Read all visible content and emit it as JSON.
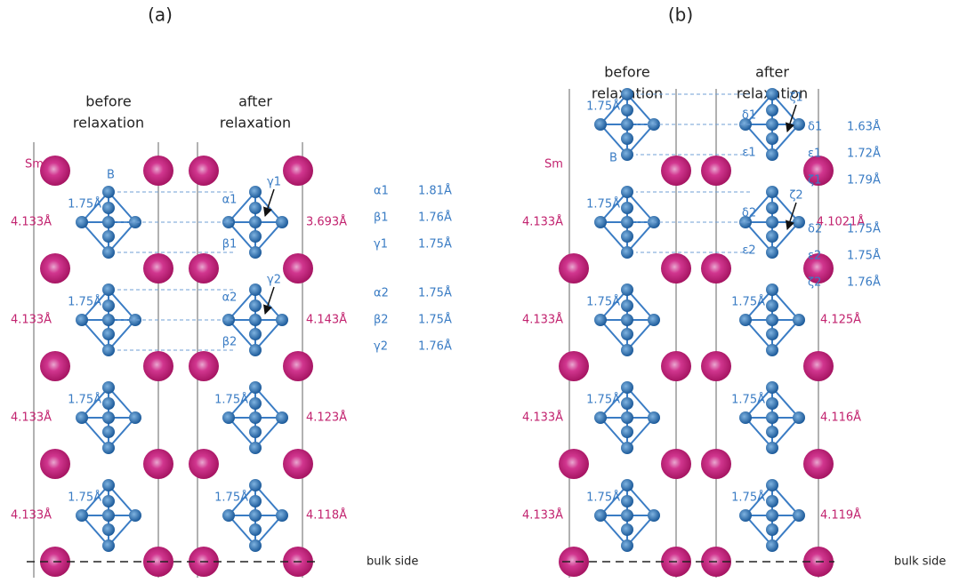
{
  "panels": [
    {
      "label": "(a)",
      "before": [
        "before",
        "relaxation"
      ],
      "after": [
        "after",
        "relaxation"
      ],
      "sm": "Sm",
      "b": "B",
      "bulk": "bulk side",
      "left_spacing": [
        "4.133Å",
        "4.133Å",
        "4.133Å",
        "4.133Å"
      ],
      "right_spacing": [
        "3.693Å",
        "4.143Å",
        "4.123Å",
        "4.118Å"
      ],
      "before_cluster_labels": [
        "1.75Å",
        "1.75Å",
        "1.75Å",
        "1.75Å"
      ],
      "after_cluster_labels": [
        "1.75Å",
        "1.75Å"
      ],
      "bonds": [
        [
          "α1",
          "1.81Å"
        ],
        [
          "β1",
          "1.76Å"
        ],
        [
          "γ1",
          "1.75Å"
        ],
        [
          "α2",
          "1.75Å"
        ],
        [
          "β2",
          "1.75Å"
        ],
        [
          "γ2",
          "1.76Å"
        ]
      ]
    },
    {
      "label": "(b)",
      "before": [
        "before",
        "relaxation"
      ],
      "after": [
        "after",
        "relaxation"
      ],
      "sm": "Sm",
      "b": "B",
      "bulk": "bulk side",
      "left_spacing": [
        "4.133Å",
        "4.133Å",
        "4.133Å",
        "4.133Å"
      ],
      "right_spacing": [
        "4.1021Å",
        "4.125Å",
        "4.116Å",
        "4.119Å"
      ],
      "before_cluster_labels": [
        "1.75Å",
        "1.75Å",
        "1.75Å",
        "1.75Å",
        "1.75Å"
      ],
      "after_cluster_labels": [
        "1.75Å",
        "1.75Å",
        "1.75Å"
      ],
      "bonds": [
        [
          "δ1",
          "1.63Å"
        ],
        [
          "ε1",
          "1.72Å"
        ],
        [
          "ζ1",
          "1.79Å"
        ],
        [
          "δ2",
          "1.75Å"
        ],
        [
          "ε2",
          "1.75Å"
        ],
        [
          "ζ2",
          "1.76Å"
        ]
      ]
    }
  ]
}
